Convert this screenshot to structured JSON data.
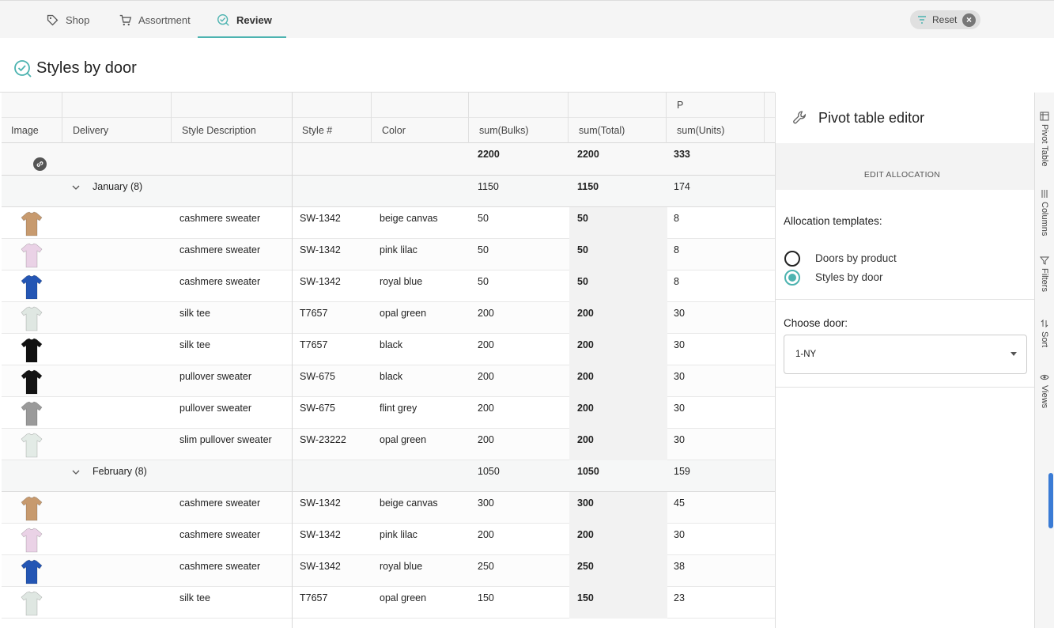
{
  "nav": {
    "tabs": [
      {
        "label": "Shop",
        "icon": "tag-icon"
      },
      {
        "label": "Assortment",
        "icon": "cart-icon"
      },
      {
        "label": "Review",
        "icon": "check-circle-icon",
        "active": true
      }
    ],
    "reset_label": "Reset"
  },
  "page": {
    "title": "Styles by door"
  },
  "grid": {
    "group_header_label": "P",
    "columns": [
      "Image",
      "Delivery",
      "Style Description",
      "Style #",
      "Color",
      "sum(Bulks)",
      "sum(Total)",
      "sum(Units)"
    ],
    "totals": {
      "bulks": "2200",
      "total": "2200",
      "units": "333"
    },
    "rows": [
      {
        "type": "group",
        "label": "January (8)",
        "bulks": "1150",
        "total": "1150",
        "units": "174"
      },
      {
        "type": "item",
        "desc": "cashmere sweater",
        "style": "SW-1342",
        "color": "beige canvas",
        "bulks": "50",
        "total": "50",
        "units": "8",
        "swatch": "#c79a6e"
      },
      {
        "type": "item",
        "desc": "cashmere sweater",
        "style": "SW-1342",
        "color": "pink lilac",
        "bulks": "50",
        "total": "50",
        "units": "8",
        "swatch": "#ead2e6"
      },
      {
        "type": "item",
        "desc": "cashmere sweater",
        "style": "SW-1342",
        "color": "royal blue",
        "bulks": "50",
        "total": "50",
        "units": "8",
        "swatch": "#2456b4"
      },
      {
        "type": "item",
        "desc": "silk tee",
        "style": "T7657",
        "color": "opal green",
        "bulks": "200",
        "total": "200",
        "units": "30",
        "swatch": "#dfe7e2"
      },
      {
        "type": "item",
        "desc": "silk tee",
        "style": "T7657",
        "color": "black",
        "bulks": "200",
        "total": "200",
        "units": "30",
        "swatch": "#111111"
      },
      {
        "type": "item",
        "desc": "pullover sweater",
        "style": "SW-675",
        "color": "black",
        "bulks": "200",
        "total": "200",
        "units": "30",
        "swatch": "#141414"
      },
      {
        "type": "item",
        "desc": "pullover sweater",
        "style": "SW-675",
        "color": "flint grey",
        "bulks": "200",
        "total": "200",
        "units": "30",
        "swatch": "#9a9a9a"
      },
      {
        "type": "item",
        "desc": "slim pullover sweater",
        "style": "SW-23222",
        "color": "opal green",
        "bulks": "200",
        "total": "200",
        "units": "30",
        "swatch": "#e3ebe6"
      },
      {
        "type": "group",
        "label": "February (8)",
        "bulks": "1050",
        "total": "1050",
        "units": "159"
      },
      {
        "type": "item",
        "desc": "cashmere sweater",
        "style": "SW-1342",
        "color": "beige canvas",
        "bulks": "300",
        "total": "300",
        "units": "45",
        "swatch": "#c79a6e"
      },
      {
        "type": "item",
        "desc": "cashmere sweater",
        "style": "SW-1342",
        "color": "pink lilac",
        "bulks": "200",
        "total": "200",
        "units": "30",
        "swatch": "#ead2e6"
      },
      {
        "type": "item",
        "desc": "cashmere sweater",
        "style": "SW-1342",
        "color": "royal blue",
        "bulks": "250",
        "total": "250",
        "units": "38",
        "swatch": "#2456b4"
      },
      {
        "type": "item",
        "desc": "silk tee",
        "style": "T7657",
        "color": "opal green",
        "bulks": "150",
        "total": "150",
        "units": "23",
        "swatch": "#dfe7e2"
      }
    ]
  },
  "panel": {
    "title": "Pivot table editor",
    "edit_allocation": "EDIT ALLOCATION",
    "templates_label": "Allocation templates:",
    "templates": [
      {
        "label": "Doors by product",
        "selected": false
      },
      {
        "label": "Styles by door",
        "selected": true
      }
    ],
    "door_label": "Choose door:",
    "door_value": "1-NY"
  },
  "side_tabs": [
    "Pivot Table",
    "Columns",
    "Filters",
    "Sort",
    "Views"
  ],
  "colors": {
    "accent": "#4cb3b0"
  }
}
